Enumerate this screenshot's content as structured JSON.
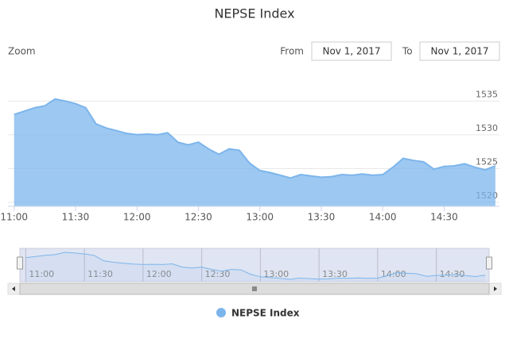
{
  "range_selector": {
    "zoom_label": "Zoom",
    "from_label": "From",
    "from_value": "Nov 1, 2017",
    "to_label": "To",
    "to_value": "Nov 1, 2017"
  },
  "chart_data": {
    "type": "area",
    "title": "NEPSE Index",
    "x": [
      "11:00",
      "11:05",
      "11:10",
      "11:15",
      "11:20",
      "11:25",
      "11:30",
      "11:35",
      "11:40",
      "11:45",
      "11:50",
      "11:55",
      "12:00",
      "12:05",
      "12:10",
      "12:15",
      "12:20",
      "12:25",
      "12:30",
      "12:35",
      "12:40",
      "12:45",
      "12:50",
      "12:55",
      "13:00",
      "13:05",
      "13:10",
      "13:15",
      "13:20",
      "13:25",
      "13:30",
      "13:35",
      "13:40",
      "13:45",
      "13:50",
      "13:55",
      "14:00",
      "14:05",
      "14:10",
      "14:15",
      "14:20",
      "14:25",
      "14:30",
      "14:35",
      "14:40",
      "14:45",
      "14:50",
      "14:55"
    ],
    "series": [
      {
        "name": "NEPSE Index",
        "color": "#7cb5ec",
        "values": [
          1533.0,
          1533.5,
          1534.0,
          1534.3,
          1535.3,
          1535.0,
          1534.6,
          1534.0,
          1531.6,
          1531.0,
          1530.6,
          1530.2,
          1530.0,
          1530.1,
          1530.0,
          1530.3,
          1528.9,
          1528.5,
          1528.9,
          1527.9,
          1527.1,
          1527.9,
          1527.7,
          1525.8,
          1524.7,
          1524.4,
          1524.0,
          1523.6,
          1524.1,
          1523.9,
          1523.7,
          1523.8,
          1524.1,
          1524.0,
          1524.2,
          1524.0,
          1524.1,
          1525.2,
          1526.5,
          1526.2,
          1526.0,
          1524.9,
          1525.3,
          1525.4,
          1525.7,
          1525.2,
          1524.8,
          1525.4
        ]
      }
    ],
    "xlim": [
      "10:57",
      "14:57"
    ],
    "xticks": [
      "11:00",
      "11:30",
      "12:00",
      "12:30",
      "13:00",
      "13:30",
      "14:00",
      "14:30"
    ],
    "ylim": [
      1519.4,
      1538.8
    ],
    "yticks": [
      1520,
      1525,
      1530,
      1535
    ],
    "grid": true
  }
}
